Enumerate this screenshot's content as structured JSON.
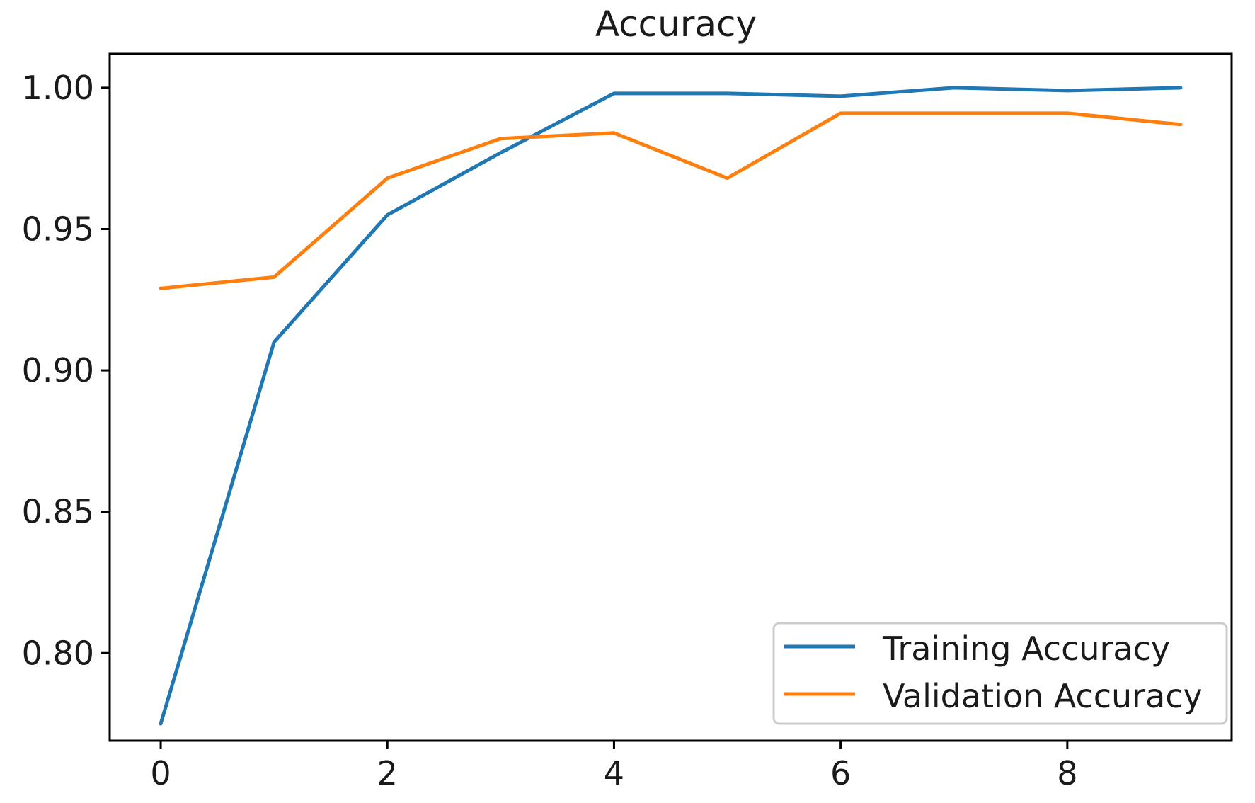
{
  "chart_data": {
    "type": "line",
    "title": "Accuracy",
    "xlabel": "",
    "ylabel": "",
    "xlim": [
      -0.45,
      9.45
    ],
    "ylim": [
      0.769,
      1.012
    ],
    "x_ticks": [
      0,
      2,
      4,
      6,
      8
    ],
    "y_ticks": [
      0.8,
      0.85,
      0.9,
      0.95,
      1.0
    ],
    "x_tick_labels": [
      "0",
      "2",
      "4",
      "6",
      "8"
    ],
    "y_tick_labels": [
      "0.80",
      "0.85",
      "0.90",
      "0.95",
      "1.00"
    ],
    "grid": false,
    "legend_position": "lower-right",
    "x": [
      0,
      1,
      2,
      3,
      4,
      5,
      6,
      7,
      8,
      9
    ],
    "series": [
      {
        "name": "Training Accuracy",
        "color": "#1f77b4",
        "values": [
          0.775,
          0.91,
          0.955,
          0.977,
          0.998,
          0.998,
          0.997,
          1.0,
          0.999,
          1.0
        ]
      },
      {
        "name": "Validation Accuracy",
        "color": "#ff7f0e",
        "values": [
          0.929,
          0.933,
          0.968,
          0.982,
          0.984,
          0.968,
          0.991,
          0.991,
          0.991,
          0.987
        ]
      }
    ]
  }
}
